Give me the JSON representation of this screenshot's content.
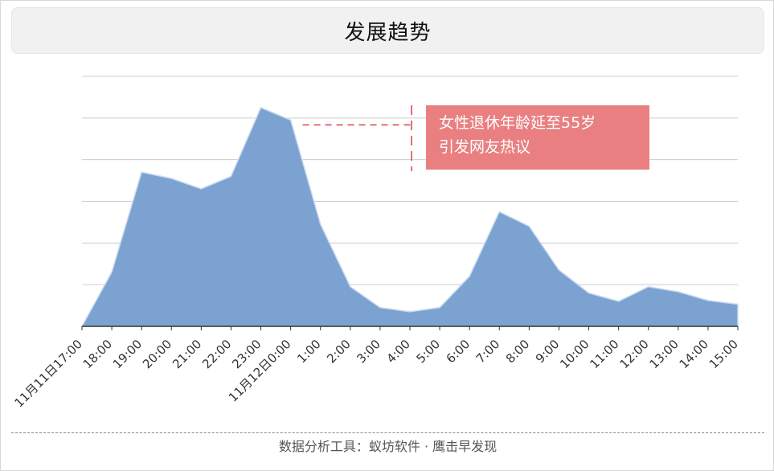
{
  "title": "发展趋势",
  "footer": "数据分析工具：蚁坊软件 · 鹰击早发现",
  "annotation": {
    "line1": "女性退休年龄延至55岁",
    "line2": "引发网友热议",
    "at_category": "23:00",
    "color": "#e97f80"
  },
  "colors": {
    "area_fill": "#7ba2d1",
    "area_stroke": "#c9d9ee",
    "grid": "#cccccc",
    "axis": "#333333",
    "annotation_line": "#d9414d"
  },
  "chart_data": {
    "type": "area",
    "title": "",
    "xlabel": "",
    "ylabel": "",
    "grid": true,
    "y_axis_labels": false,
    "ylim": [
      0,
      6
    ],
    "categories": [
      "11月11日17:00",
      "18:00",
      "19:00",
      "20:00",
      "21:00",
      "22:00",
      "23:00",
      "11月12日0:00",
      "1:00",
      "2:00",
      "3:00",
      "4:00",
      "5:00",
      "6:00",
      "7:00",
      "8:00",
      "9:00",
      "10:00",
      "11:00",
      "12:00",
      "13:00",
      "14:00",
      "15:00"
    ],
    "values": [
      0,
      1.3,
      3.7,
      3.55,
      3.3,
      3.6,
      5.25,
      4.95,
      2.45,
      0.95,
      0.45,
      0.35,
      0.45,
      1.2,
      2.75,
      2.4,
      1.35,
      0.8,
      0.6,
      0.95,
      0.83,
      0.62,
      0.53
    ]
  }
}
